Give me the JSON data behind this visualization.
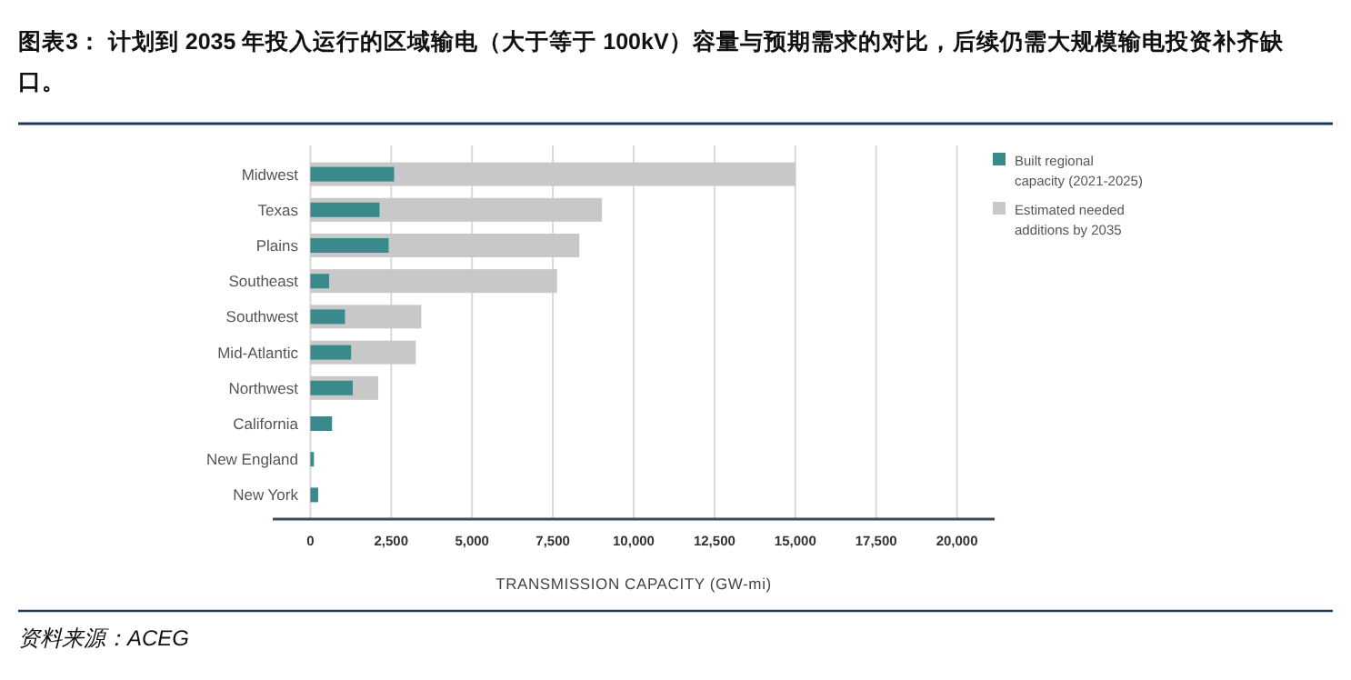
{
  "chart_data": {
    "type": "bar",
    "orientation": "horizontal",
    "title": "图表3：  计划到 2035 年投入运行的区域输电（大于等于 100kV）容量与预期需求的对比，后续仍需大规模输电投资补齐缺口。",
    "categories": [
      "Midwest",
      "Texas",
      "Plains",
      "Southeast",
      "Southwest",
      "Mid-Atlantic",
      "Northwest",
      "California",
      "New England",
      "New York"
    ],
    "series": [
      {
        "name": "Estimated needed additions by 2035",
        "color": "#c8c8c8",
        "values": [
          15000,
          9020,
          8320,
          7630,
          3430,
          3260,
          2100,
          null,
          null,
          null
        ]
      },
      {
        "name": "Built regional capacity (2021-2025)",
        "color": "#3a8a8c",
        "values": [
          2590,
          2140,
          2420,
          580,
          1070,
          1260,
          1310,
          670,
          110,
          240
        ]
      }
    ],
    "xlim": [
      0,
      20000
    ],
    "xticks": [
      {
        "value": 0,
        "label": "0"
      },
      {
        "value": 2500,
        "label": "2,500"
      },
      {
        "value": 5000,
        "label": "5,000"
      },
      {
        "value": 7500,
        "label": "7,500"
      },
      {
        "value": 10000,
        "label": "10,000"
      },
      {
        "value": 12500,
        "label": "12,500"
      },
      {
        "value": 15000,
        "label": "15,000"
      },
      {
        "value": 17500,
        "label": "17,500"
      },
      {
        "value": 20000,
        "label": "20,000"
      }
    ],
    "xlabel": "TRANSMISSION CAPACITY (GW-mi)",
    "grid": "x",
    "legend": "right",
    "annotations": [
      "资料来源：ACEG"
    ]
  }
}
